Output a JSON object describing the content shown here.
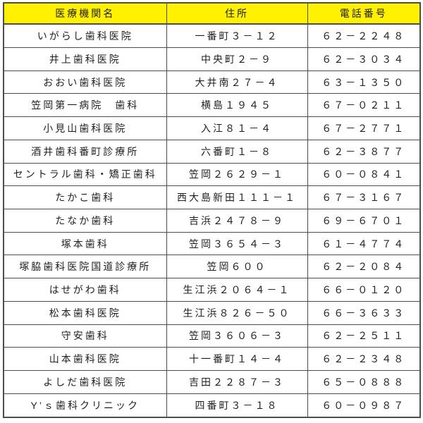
{
  "colors": {
    "header_background": "#FFF100",
    "border": "#4d4d4d",
    "text": "#1f1f1f",
    "page_background": "#ffffff"
  },
  "table": {
    "columns": [
      {
        "key": "name",
        "label": "医療機関名"
      },
      {
        "key": "address",
        "label": "住所"
      },
      {
        "key": "phone",
        "label": "電話番号"
      }
    ],
    "rows": [
      {
        "name": "いがらし歯科医院",
        "address": "一番町３－１２",
        "phone": "６２－２２４８"
      },
      {
        "name": "井上歯科医院",
        "address": "中央町２－９",
        "phone": "６２－３０３４"
      },
      {
        "name": "おおい歯科医院",
        "address": "大井南２７－４",
        "phone": "６３－１３５０"
      },
      {
        "name": "笠岡第一病院　歯科",
        "address": "横島１９４５",
        "phone": "６７－０２１１"
      },
      {
        "name": "小見山歯科医院",
        "address": "入江８１－４",
        "phone": "６７－２７７１"
      },
      {
        "name": "酒井歯科番町診療所",
        "address": "六番町１－８",
        "phone": "６２－３８７７"
      },
      {
        "name": "セントラル歯科・矯正歯科",
        "address": "笠岡２６２９－１",
        "phone": "６０－０８４１"
      },
      {
        "name": "たかこ歯科",
        "address": "西大島新田１１１－１",
        "phone": "６７－３１６７"
      },
      {
        "name": "たなか歯科",
        "address": "吉浜２４７８－９",
        "phone": "６９－６７０１"
      },
      {
        "name": "塚本歯科",
        "address": "笠岡３６５４－３",
        "phone": "６１－４７７４"
      },
      {
        "name": "塚脇歯科医院国道診療所",
        "address": "笠岡６００",
        "phone": "６２－２０８４"
      },
      {
        "name": "はせがわ歯科",
        "address": "生江浜２０６４－１",
        "phone": "６６－０１２０"
      },
      {
        "name": "松本歯科医院",
        "address": "生江浜８２６－５０",
        "phone": "６６－３６３３"
      },
      {
        "name": "守安歯科",
        "address": "笠岡３６０６－３",
        "phone": "６２－２５１１"
      },
      {
        "name": "山本歯科医院",
        "address": "十一番町１４－４",
        "phone": "６２－２３４８"
      },
      {
        "name": "よしだ歯科医院",
        "address": "吉田２２８７－３",
        "phone": "６５－０８８８"
      },
      {
        "name": "Y’ｓ歯科クリニック",
        "address": "四番町３－１８",
        "phone": "６０－０９８７"
      }
    ]
  }
}
